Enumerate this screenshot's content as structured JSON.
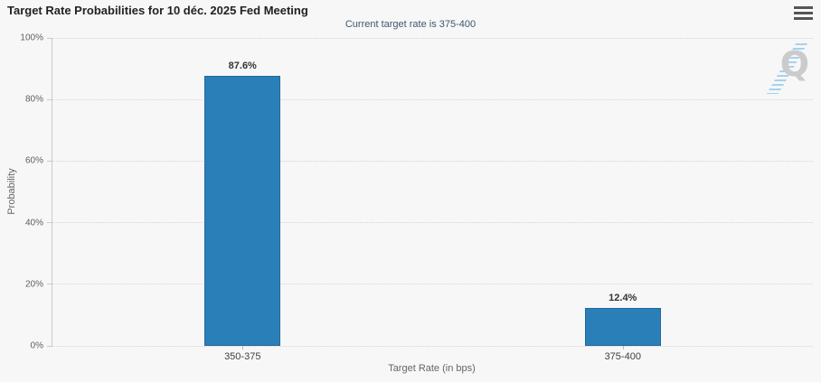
{
  "header": {
    "title": "Target Rate Probabilities for 10 déc. 2025 Fed Meeting"
  },
  "chart_data": {
    "type": "bar",
    "title": "Target Rate Probabilities for 10 déc. 2025 Fed Meeting",
    "subtitle": "Current target rate is 375-400",
    "categories": [
      "350-375",
      "375-400"
    ],
    "values": [
      87.6,
      12.4
    ],
    "value_labels": [
      "87.6%",
      "12.4%"
    ],
    "xlabel": "Target Rate (in bps)",
    "ylabel": "Probability",
    "ylim": [
      0,
      100
    ],
    "yticks": [
      0,
      20,
      40,
      60,
      80,
      100
    ],
    "ytick_labels": [
      "0%",
      "20%",
      "40%",
      "60%",
      "80%",
      "100%"
    ],
    "grid": "horizontal-dotted",
    "legend": "none",
    "bar_color": "#2B7FB8",
    "watermark_letter": "Q"
  },
  "icons": {
    "menu": "hamburger-icon",
    "watermark": "q-logo-with-blue-dashes"
  },
  "colors": {
    "background": "#F7F7F7",
    "bar": "#2B7FB8",
    "title_text": "#222222",
    "subtitle_text": "#3E576F",
    "axis_text": "#606060",
    "gridline": "#D4D4D4",
    "watermark_gray": "#CBCBCB",
    "watermark_blue": "#96CDEB"
  }
}
